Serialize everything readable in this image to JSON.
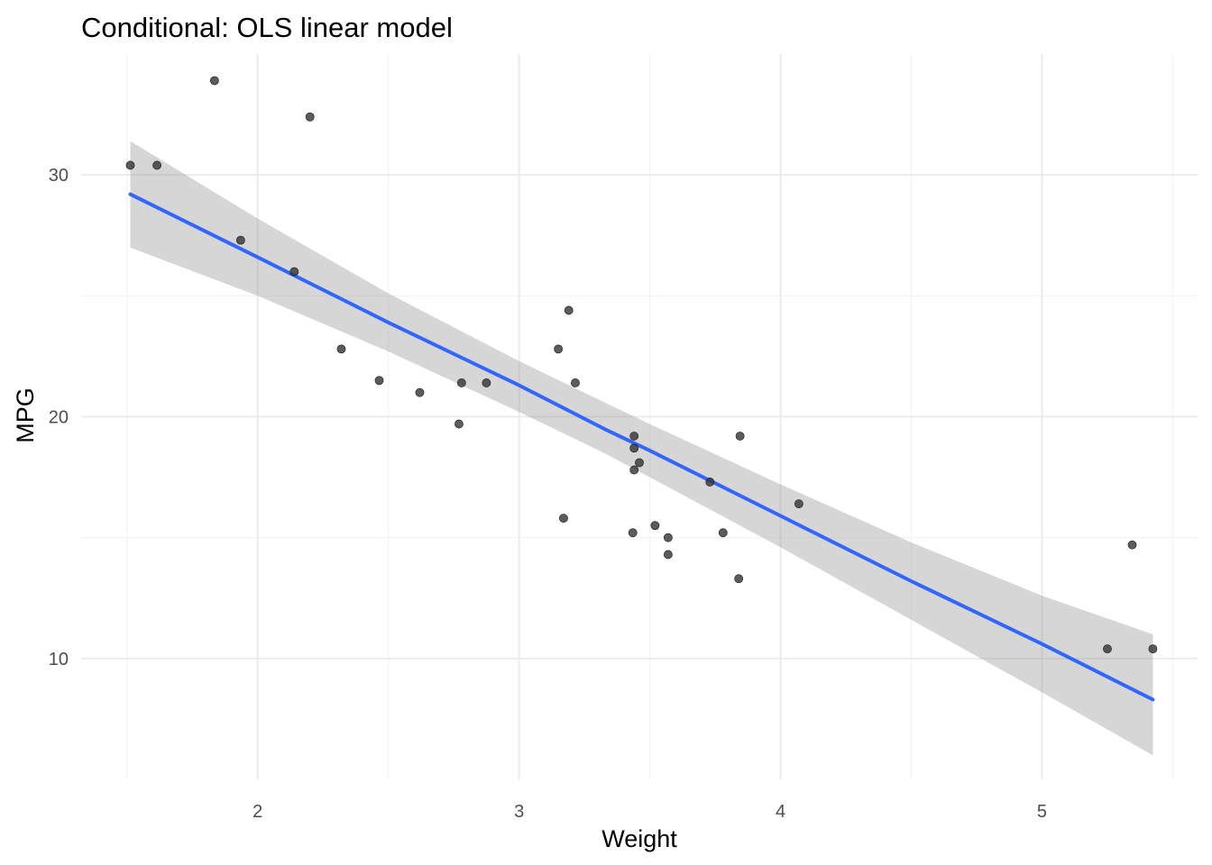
{
  "chart_data": {
    "type": "scatter",
    "title": "Conditional: OLS linear model",
    "xlabel": "Weight",
    "ylabel": "MPG",
    "xlim": [
      1.325,
      5.595
    ],
    "ylim": [
      5.0,
      35.0
    ],
    "xticks": [
      2,
      3,
      4,
      5
    ],
    "yticks": [
      10,
      20,
      30
    ],
    "grid": true,
    "points": {
      "color": "#333333",
      "x": [
        2.62,
        2.875,
        2.32,
        3.215,
        3.44,
        3.46,
        3.57,
        3.19,
        3.15,
        3.44,
        3.44,
        4.07,
        3.73,
        3.78,
        5.25,
        5.424,
        5.345,
        2.2,
        1.615,
        1.835,
        2.465,
        3.52,
        3.435,
        3.84,
        3.845,
        1.935,
        2.14,
        1.513,
        3.17,
        2.77,
        3.57,
        2.78
      ],
      "y": [
        21.0,
        21.4,
        22.8,
        21.4,
        18.7,
        18.1,
        14.3,
        24.4,
        22.8,
        19.2,
        17.8,
        16.4,
        17.3,
        15.2,
        10.4,
        10.4,
        14.7,
        32.4,
        30.4,
        33.9,
        21.5,
        15.5,
        15.2,
        13.3,
        19.2,
        27.3,
        26.0,
        30.4,
        15.8,
        19.7,
        15.0,
        21.4
      ]
    },
    "fit": {
      "color": "#3366ff",
      "band_color": "#999999",
      "x": [
        1.513,
        2.0,
        2.5,
        3.0,
        3.325,
        3.5,
        4.0,
        4.5,
        5.0,
        5.424
      ],
      "y": [
        29.2,
        26.6,
        23.9,
        21.3,
        19.5,
        18.6,
        15.9,
        13.2,
        10.6,
        8.3
      ],
      "lower": [
        27.0,
        25.0,
        22.7,
        20.2,
        18.5,
        17.5,
        14.6,
        11.6,
        8.6,
        6.0
      ],
      "upper": [
        31.4,
        28.2,
        25.1,
        22.3,
        20.6,
        19.7,
        17.2,
        14.8,
        12.6,
        11.0
      ]
    }
  }
}
